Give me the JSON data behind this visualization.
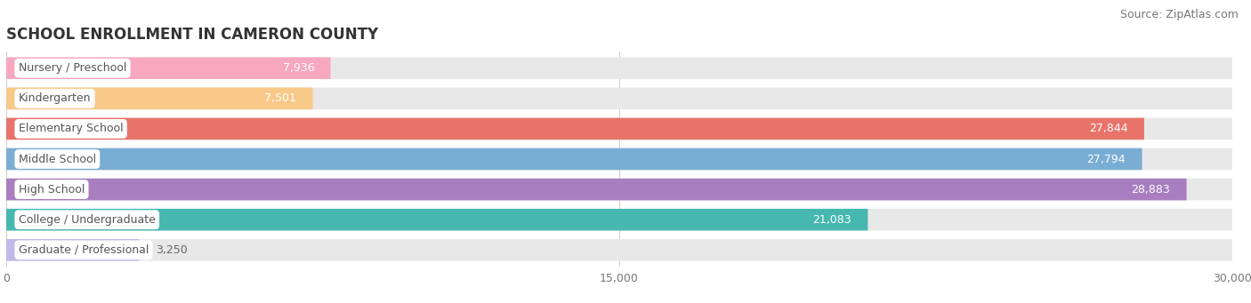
{
  "title": "SCHOOL ENROLLMENT IN CAMERON COUNTY",
  "source": "Source: ZipAtlas.com",
  "categories": [
    "Nursery / Preschool",
    "Kindergarten",
    "Elementary School",
    "Middle School",
    "High School",
    "College / Undergraduate",
    "Graduate / Professional"
  ],
  "values": [
    7936,
    7501,
    27844,
    27794,
    28883,
    21083,
    3250
  ],
  "bar_colors": [
    "#f7a8be",
    "#f9c98a",
    "#e8736a",
    "#7aadd4",
    "#a87ec0",
    "#46b8b0",
    "#c0b8e8"
  ],
  "bar_bg_color": "#e8e8e8",
  "label_text_color": "#555555",
  "label_bg_color": "#ffffff",
  "value_color_inside": "#ffffff",
  "value_color_outside": "#666666",
  "xlim": [
    0,
    30000
  ],
  "xticks": [
    0,
    15000,
    30000
  ],
  "background_color": "#ffffff",
  "title_fontsize": 12,
  "source_fontsize": 9,
  "label_fontsize": 9,
  "value_fontsize": 9
}
